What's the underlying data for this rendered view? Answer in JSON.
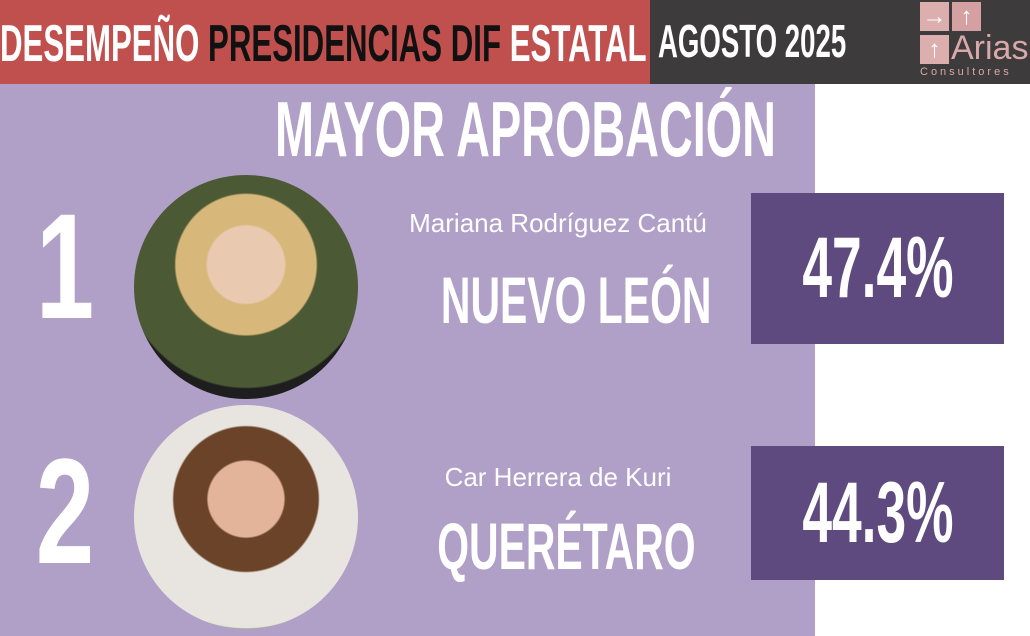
{
  "header": {
    "title_part1": "DESEMPEÑO",
    "title_part2": "PRESIDENCIAS DIF",
    "title_part3": "ESTATAL",
    "date": "AGOSTO 2025"
  },
  "logo": {
    "brand": "Arias",
    "sub": "Consultores"
  },
  "section_title": "MAYOR APROBACIÓN",
  "entries": [
    {
      "rank": "1",
      "name": "Mariana Rodríguez Cantú",
      "state": "NUEVO LEÓN",
      "approval": "47.4%"
    },
    {
      "rank": "2",
      "name": "Car Herrera de Kuri",
      "state": "QUERÉTARO",
      "approval": "44.3%"
    }
  ],
  "colors": {
    "header_red": "#c0504d",
    "header_dark": "#3d3b3c",
    "panel_purple": "#b09fc7",
    "box_purple": "#5f4a7f",
    "logo_pink": "#d9a9aa"
  }
}
